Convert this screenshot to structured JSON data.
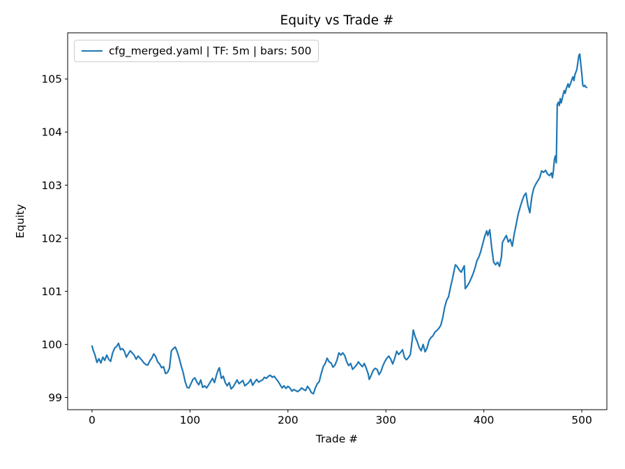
{
  "chart_data": {
    "type": "line",
    "title": "Equity vs Trade #",
    "xlabel": "Trade #",
    "ylabel": "Equity",
    "grid": false,
    "legend": {
      "position": "upper-left",
      "entries": [
        {
          "label": "cfg_merged.yaml | TF: 5m | bars: 500",
          "color": "#1f77b4"
        }
      ]
    },
    "colors": {
      "line": "#1f77b4",
      "axes": "#000000",
      "background": "#ffffff",
      "legend_border": "#cccccc"
    },
    "xlim": [
      -24.9,
      525.6
    ],
    "ylim": [
      98.77,
      105.87
    ],
    "xticks": [
      0,
      100,
      200,
      300,
      400,
      500
    ],
    "yticks": [
      99,
      100,
      101,
      102,
      103,
      104,
      105
    ],
    "series": [
      {
        "name": "cfg_merged.yaml | TF: 5m | bars: 500",
        "points": [
          [
            0,
            99.97
          ],
          [
            1,
            99.9
          ],
          [
            3,
            99.8
          ],
          [
            5,
            99.66
          ],
          [
            7,
            99.73
          ],
          [
            9,
            99.65
          ],
          [
            11,
            99.76
          ],
          [
            13,
            99.7
          ],
          [
            15,
            99.8
          ],
          [
            17,
            99.72
          ],
          [
            19,
            99.68
          ],
          [
            21,
            99.84
          ],
          [
            23,
            99.93
          ],
          [
            25,
            99.96
          ],
          [
            27,
            100.02
          ],
          [
            29,
            99.9
          ],
          [
            31,
            99.92
          ],
          [
            33,
            99.87
          ],
          [
            35,
            99.76
          ],
          [
            37,
            99.82
          ],
          [
            39,
            99.88
          ],
          [
            41,
            99.84
          ],
          [
            43,
            99.8
          ],
          [
            45,
            99.72
          ],
          [
            47,
            99.78
          ],
          [
            49,
            99.74
          ],
          [
            51,
            99.7
          ],
          [
            53,
            99.65
          ],
          [
            55,
            99.62
          ],
          [
            57,
            99.61
          ],
          [
            59,
            99.69
          ],
          [
            61,
            99.74
          ],
          [
            63,
            99.82
          ],
          [
            65,
            99.77
          ],
          [
            67,
            99.67
          ],
          [
            69,
            99.63
          ],
          [
            71,
            99.56
          ],
          [
            73,
            99.58
          ],
          [
            75,
            99.45
          ],
          [
            77,
            99.47
          ],
          [
            79,
            99.55
          ],
          [
            81,
            99.88
          ],
          [
            83,
            99.92
          ],
          [
            85,
            99.95
          ],
          [
            87,
            99.86
          ],
          [
            89,
            99.74
          ],
          [
            91,
            99.6
          ],
          [
            93,
            99.47
          ],
          [
            95,
            99.3
          ],
          [
            97,
            99.19
          ],
          [
            99,
            99.18
          ],
          [
            101,
            99.26
          ],
          [
            103,
            99.34
          ],
          [
            105,
            99.37
          ],
          [
            107,
            99.29
          ],
          [
            109,
            99.24
          ],
          [
            111,
            99.33
          ],
          [
            113,
            99.19
          ],
          [
            115,
            99.22
          ],
          [
            117,
            99.18
          ],
          [
            119,
            99.24
          ],
          [
            121,
            99.3
          ],
          [
            123,
            99.36
          ],
          [
            125,
            99.28
          ],
          [
            127,
            99.42
          ],
          [
            129,
            99.53
          ],
          [
            130,
            99.56
          ],
          [
            132,
            99.36
          ],
          [
            134,
            99.4
          ],
          [
            136,
            99.28
          ],
          [
            138,
            99.22
          ],
          [
            140,
            99.28
          ],
          [
            142,
            99.16
          ],
          [
            144,
            99.2
          ],
          [
            146,
            99.26
          ],
          [
            148,
            99.33
          ],
          [
            150,
            99.26
          ],
          [
            152,
            99.29
          ],
          [
            154,
            99.32
          ],
          [
            156,
            99.22
          ],
          [
            158,
            99.25
          ],
          [
            160,
            99.28
          ],
          [
            162,
            99.34
          ],
          [
            164,
            99.23
          ],
          [
            166,
            99.29
          ],
          [
            168,
            99.34
          ],
          [
            170,
            99.29
          ],
          [
            172,
            99.31
          ],
          [
            174,
            99.33
          ],
          [
            176,
            99.38
          ],
          [
            178,
            99.36
          ],
          [
            180,
            99.4
          ],
          [
            182,
            99.42
          ],
          [
            184,
            99.38
          ],
          [
            186,
            99.4
          ],
          [
            188,
            99.35
          ],
          [
            190,
            99.3
          ],
          [
            192,
            99.24
          ],
          [
            194,
            99.18
          ],
          [
            196,
            99.22
          ],
          [
            198,
            99.17
          ],
          [
            200,
            99.21
          ],
          [
            202,
            99.18
          ],
          [
            204,
            99.12
          ],
          [
            206,
            99.15
          ],
          [
            208,
            99.13
          ],
          [
            210,
            99.11
          ],
          [
            212,
            99.14
          ],
          [
            214,
            99.18
          ],
          [
            216,
            99.15
          ],
          [
            218,
            99.13
          ],
          [
            220,
            99.21
          ],
          [
            222,
            99.16
          ],
          [
            224,
            99.09
          ],
          [
            226,
            99.07
          ],
          [
            228,
            99.18
          ],
          [
            230,
            99.26
          ],
          [
            232,
            99.3
          ],
          [
            234,
            99.45
          ],
          [
            236,
            99.58
          ],
          [
            238,
            99.64
          ],
          [
            240,
            99.74
          ],
          [
            242,
            99.67
          ],
          [
            244,
            99.65
          ],
          [
            246,
            99.57
          ],
          [
            248,
            99.61
          ],
          [
            250,
            99.7
          ],
          [
            252,
            99.84
          ],
          [
            254,
            99.8
          ],
          [
            256,
            99.84
          ],
          [
            258,
            99.79
          ],
          [
            260,
            99.67
          ],
          [
            262,
            99.6
          ],
          [
            264,
            99.64
          ],
          [
            266,
            99.53
          ],
          [
            268,
            99.57
          ],
          [
            270,
            99.61
          ],
          [
            272,
            99.67
          ],
          [
            274,
            99.62
          ],
          [
            276,
            99.58
          ],
          [
            278,
            99.64
          ],
          [
            280,
            99.55
          ],
          [
            282,
            99.44
          ],
          [
            283,
            99.34
          ],
          [
            285,
            99.42
          ],
          [
            287,
            99.51
          ],
          [
            289,
            99.55
          ],
          [
            291,
            99.53
          ],
          [
            293,
            99.43
          ],
          [
            295,
            99.49
          ],
          [
            297,
            99.6
          ],
          [
            299,
            99.68
          ],
          [
            301,
            99.74
          ],
          [
            303,
            99.78
          ],
          [
            305,
            99.72
          ],
          [
            307,
            99.63
          ],
          [
            309,
            99.74
          ],
          [
            311,
            99.87
          ],
          [
            313,
            99.81
          ],
          [
            315,
            99.85
          ],
          [
            317,
            99.9
          ],
          [
            319,
            99.75
          ],
          [
            321,
            99.71
          ],
          [
            323,
            99.75
          ],
          [
            325,
            99.81
          ],
          [
            327,
            100.1
          ],
          [
            328,
            100.27
          ],
          [
            330,
            100.14
          ],
          [
            332,
            100.05
          ],
          [
            334,
            99.94
          ],
          [
            336,
            99.88
          ],
          [
            338,
            100.0
          ],
          [
            340,
            99.86
          ],
          [
            342,
            99.93
          ],
          [
            344,
            100.07
          ],
          [
            346,
            100.13
          ],
          [
            348,
            100.16
          ],
          [
            350,
            100.23
          ],
          [
            352,
            100.26
          ],
          [
            354,
            100.3
          ],
          [
            356,
            100.36
          ],
          [
            358,
            100.5
          ],
          [
            360,
            100.7
          ],
          [
            362,
            100.83
          ],
          [
            364,
            100.9
          ],
          [
            366,
            101.08
          ],
          [
            368,
            101.24
          ],
          [
            370,
            101.42
          ],
          [
            371,
            101.5
          ],
          [
            373,
            101.46
          ],
          [
            375,
            101.4
          ],
          [
            377,
            101.36
          ],
          [
            379,
            101.44
          ],
          [
            380,
            101.48
          ],
          [
            381,
            101.05
          ],
          [
            383,
            101.1
          ],
          [
            385,
            101.16
          ],
          [
            387,
            101.24
          ],
          [
            389,
            101.33
          ],
          [
            391,
            101.44
          ],
          [
            393,
            101.58
          ],
          [
            395,
            101.65
          ],
          [
            397,
            101.76
          ],
          [
            399,
            101.9
          ],
          [
            401,
            102.04
          ],
          [
            403,
            102.14
          ],
          [
            404,
            102.05
          ],
          [
            406,
            102.16
          ],
          [
            408,
            101.82
          ],
          [
            410,
            101.55
          ],
          [
            412,
            101.5
          ],
          [
            414,
            101.55
          ],
          [
            416,
            101.47
          ],
          [
            418,
            101.65
          ],
          [
            419,
            101.92
          ],
          [
            421,
            101.99
          ],
          [
            423,
            102.05
          ],
          [
            425,
            101.93
          ],
          [
            427,
            101.98
          ],
          [
            429,
            101.85
          ],
          [
            431,
            102.08
          ],
          [
            433,
            102.26
          ],
          [
            435,
            102.45
          ],
          [
            437,
            102.58
          ],
          [
            439,
            102.7
          ],
          [
            441,
            102.8
          ],
          [
            443,
            102.85
          ],
          [
            445,
            102.62
          ],
          [
            447,
            102.48
          ],
          [
            449,
            102.78
          ],
          [
            451,
            102.94
          ],
          [
            453,
            103.02
          ],
          [
            455,
            103.08
          ],
          [
            457,
            103.14
          ],
          [
            459,
            103.27
          ],
          [
            461,
            103.24
          ],
          [
            463,
            103.28
          ],
          [
            465,
            103.21
          ],
          [
            467,
            103.18
          ],
          [
            469,
            103.23
          ],
          [
            470,
            103.14
          ],
          [
            471,
            103.26
          ],
          [
            472,
            103.48
          ],
          [
            473,
            103.55
          ],
          [
            474,
            103.42
          ],
          [
            475,
            104.52
          ],
          [
            476,
            104.56
          ],
          [
            477,
            104.5
          ],
          [
            478,
            104.63
          ],
          [
            479,
            104.55
          ],
          [
            480,
            104.63
          ],
          [
            481,
            104.71
          ],
          [
            482,
            104.78
          ],
          [
            483,
            104.73
          ],
          [
            484,
            104.81
          ],
          [
            485,
            104.86
          ],
          [
            486,
            104.91
          ],
          [
            487,
            104.84
          ],
          [
            488,
            104.89
          ],
          [
            489,
            104.94
          ],
          [
            490,
            105.0
          ],
          [
            491,
            105.04
          ],
          [
            492,
            104.97
          ],
          [
            493,
            105.08
          ],
          [
            494,
            105.13
          ],
          [
            495,
            105.18
          ],
          [
            496,
            105.31
          ],
          [
            497,
            105.44
          ],
          [
            498,
            105.47
          ],
          [
            499,
            105.28
          ],
          [
            500,
            105.1
          ],
          [
            501,
            104.88
          ],
          [
            502,
            104.86
          ],
          [
            503,
            104.88
          ],
          [
            504,
            104.85
          ],
          [
            505,
            104.84
          ]
        ]
      }
    ]
  }
}
